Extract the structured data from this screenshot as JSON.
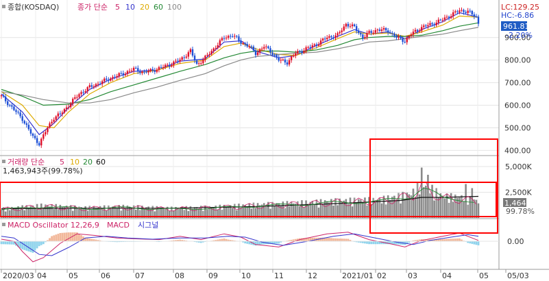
{
  "chart_data": [
    {
      "type": "candlestick",
      "panel": "price",
      "legend": {
        "symbol_label": "종합(KOSDAQ)",
        "ma_title": "종가 단순",
        "ma_periods": [
          "5",
          "10",
          "20",
          "60",
          "100"
        ],
        "ma_colors": [
          "#cc2266",
          "#3333cc",
          "#ddaa00",
          "#228833",
          "#888888"
        ]
      },
      "readout": {
        "lc": "LC:129.25",
        "hc": "HC:-6.86",
        "price": "961.81",
        "pct": "-2.20%"
      },
      "y_ticks": [
        "400.00",
        "500.00",
        "600.00",
        "700.00",
        "800.00",
        "900.00"
      ],
      "ylim": [
        380,
        1060
      ],
      "x_ticks": [
        "2020/03",
        "04",
        "05",
        "06",
        "07",
        "08",
        "09",
        "10",
        "11",
        "12",
        "2021/01",
        "02",
        "03",
        "04",
        "05",
        "05/03"
      ],
      "close_path": [
        [
          0,
          640
        ],
        [
          5,
          590
        ],
        [
          10,
          540
        ],
        [
          15,
          460
        ],
        [
          18,
          430
        ],
        [
          22,
          500
        ],
        [
          25,
          545
        ],
        [
          28,
          560
        ],
        [
          32,
          600
        ],
        [
          37,
          650
        ],
        [
          42,
          680
        ],
        [
          47,
          700
        ],
        [
          52,
          720
        ],
        [
          58,
          740
        ],
        [
          63,
          760
        ],
        [
          68,
          745
        ],
        [
          74,
          760
        ],
        [
          80,
          780
        ],
        [
          85,
          800
        ],
        [
          90,
          840
        ],
        [
          93,
          780
        ],
        [
          97,
          810
        ],
        [
          101,
          850
        ],
        [
          106,
          900
        ],
        [
          110,
          910
        ],
        [
          114,
          880
        ],
        [
          118,
          860
        ],
        [
          121,
          830
        ],
        [
          125,
          860
        ],
        [
          128,
          840
        ],
        [
          132,
          800
        ],
        [
          136,
          790
        ],
        [
          140,
          830
        ],
        [
          145,
          850
        ],
        [
          150,
          870
        ],
        [
          155,
          900
        ],
        [
          160,
          910
        ],
        [
          164,
          960
        ],
        [
          168,
          945
        ],
        [
          172,
          900
        ],
        [
          175,
          920
        ],
        [
          179,
          935
        ],
        [
          184,
          930
        ],
        [
          188,
          900
        ],
        [
          192,
          885
        ],
        [
          195,
          915
        ],
        [
          200,
          945
        ],
        [
          205,
          960
        ],
        [
          210,
          980
        ],
        [
          214,
          1000
        ],
        [
          218,
          1020
        ],
        [
          222,
          1015
        ],
        [
          226,
          990
        ],
        [
          227,
          962
        ]
      ],
      "ma_paths": [
        {
          "name": "10",
          "color": "#3333cc",
          "points": [
            [
              0,
              650
            ],
            [
              10,
              570
            ],
            [
              18,
              470
            ],
            [
              25,
              520
            ],
            [
              32,
              590
            ],
            [
              42,
              670
            ],
            [
              52,
              715
            ],
            [
              63,
              750
            ],
            [
              74,
              755
            ],
            [
              85,
              795
            ],
            [
              97,
              805
            ],
            [
              106,
              880
            ],
            [
              114,
              885
            ],
            [
              121,
              840
            ],
            [
              132,
              810
            ],
            [
              140,
              820
            ],
            [
              150,
              865
            ],
            [
              160,
              905
            ],
            [
              168,
              935
            ],
            [
              175,
              915
            ],
            [
              184,
              925
            ],
            [
              192,
              895
            ],
            [
              200,
              935
            ],
            [
              210,
              970
            ],
            [
              218,
              1010
            ],
            [
              227,
              990
            ]
          ]
        },
        {
          "name": "20",
          "color": "#ddaa00",
          "points": [
            [
              0,
              660
            ],
            [
              10,
              600
            ],
            [
              18,
              510
            ],
            [
              25,
              500
            ],
            [
              32,
              570
            ],
            [
              42,
              650
            ],
            [
              52,
              700
            ],
            [
              63,
              740
            ],
            [
              74,
              755
            ],
            [
              85,
              785
            ],
            [
              97,
              800
            ],
            [
              106,
              860
            ],
            [
              114,
              875
            ],
            [
              121,
              850
            ],
            [
              132,
              825
            ],
            [
              140,
              820
            ],
            [
              150,
              855
            ],
            [
              160,
              895
            ],
            [
              168,
              925
            ],
            [
              175,
              915
            ],
            [
              184,
              920
            ],
            [
              192,
              905
            ],
            [
              200,
              925
            ],
            [
              210,
              955
            ],
            [
              218,
              995
            ],
            [
              227,
              990
            ]
          ]
        },
        {
          "name": "60",
          "color": "#228833",
          "points": [
            [
              0,
              670
            ],
            [
              10,
              640
            ],
            [
              20,
              600
            ],
            [
              32,
              605
            ],
            [
              42,
              625
            ],
            [
              52,
              660
            ],
            [
              63,
              690
            ],
            [
              74,
              720
            ],
            [
              85,
              750
            ],
            [
              97,
              780
            ],
            [
              106,
              810
            ],
            [
              114,
              830
            ],
            [
              121,
              840
            ],
            [
              132,
              840
            ],
            [
              140,
              835
            ],
            [
              150,
              845
            ],
            [
              160,
              865
            ],
            [
              168,
              890
            ],
            [
              175,
              900
            ],
            [
              184,
              905
            ],
            [
              192,
              905
            ],
            [
              200,
              910
            ],
            [
              210,
              930
            ],
            [
              218,
              950
            ],
            [
              227,
              965
            ]
          ]
        },
        {
          "name": "100",
          "color": "#888888",
          "points": [
            [
              0,
              660
            ],
            [
              10,
              645
            ],
            [
              20,
              625
            ],
            [
              32,
              610
            ],
            [
              42,
              610
            ],
            [
              52,
              625
            ],
            [
              63,
              655
            ],
            [
              74,
              680
            ],
            [
              85,
              710
            ],
            [
              97,
              740
            ],
            [
              106,
              775
            ],
            [
              114,
              800
            ],
            [
              121,
              815
            ],
            [
              132,
              825
            ],
            [
              140,
              830
            ],
            [
              150,
              835
            ],
            [
              160,
              850
            ],
            [
              168,
              865
            ],
            [
              175,
              880
            ],
            [
              184,
              885
            ],
            [
              192,
              895
            ],
            [
              200,
              905
            ],
            [
              210,
              915
            ],
            [
              218,
              930
            ],
            [
              227,
              945
            ]
          ]
        }
      ]
    },
    {
      "type": "bar",
      "panel": "volume",
      "legend": {
        "title": "거래량 단순",
        "ma_periods": [
          "5",
          "10",
          "20",
          "60"
        ],
        "ma_colors": [
          "#cc2266",
          "#ddaa00",
          "#228833",
          "#111111"
        ],
        "current": "1,463,943주(99.78%)"
      },
      "readout": {
        "value": "1,464K",
        "pct": "99.78%"
      },
      "y_ticks": [
        "2,500K",
        "5,000K"
      ],
      "ylim": [
        0,
        6000
      ],
      "volume_profile": [
        [
          0,
          800
        ],
        [
          20,
          1100
        ],
        [
          40,
          900
        ],
        [
          60,
          1000
        ],
        [
          80,
          850
        ],
        [
          100,
          950
        ],
        [
          120,
          1150
        ],
        [
          140,
          1300
        ],
        [
          160,
          1500
        ],
        [
          180,
          1600
        ],
        [
          195,
          2100
        ],
        [
          200,
          3000
        ],
        [
          205,
          2500
        ],
        [
          210,
          1900
        ],
        [
          220,
          1800
        ],
        [
          227,
          1460
        ]
      ],
      "ma60_path": [
        [
          0,
          900
        ],
        [
          40,
          950
        ],
        [
          80,
          950
        ],
        [
          120,
          1100
        ],
        [
          160,
          1400
        ],
        [
          190,
          1700
        ],
        [
          200,
          2000
        ],
        [
          210,
          2000
        ],
        [
          227,
          2100
        ]
      ]
    },
    {
      "type": "macd",
      "panel": "macd",
      "legend": {
        "title": "MACD Oscillator 12,26,9",
        "macd_label": "MACD",
        "signal_label": "시그널"
      },
      "y_ticks": [
        "0.00"
      ],
      "macd_path": [
        [
          0,
          5
        ],
        [
          6,
          0
        ],
        [
          10,
          -25
        ],
        [
          15,
          -50
        ],
        [
          20,
          -40
        ],
        [
          28,
          -5
        ],
        [
          36,
          18
        ],
        [
          45,
          14
        ],
        [
          55,
          8
        ],
        [
          63,
          6
        ],
        [
          75,
          4
        ],
        [
          85,
          12
        ],
        [
          95,
          4
        ],
        [
          106,
          18
        ],
        [
          114,
          10
        ],
        [
          121,
          -8
        ],
        [
          132,
          -14
        ],
        [
          142,
          4
        ],
        [
          155,
          18
        ],
        [
          165,
          22
        ],
        [
          175,
          4
        ],
        [
          185,
          -6
        ],
        [
          192,
          -14
        ],
        [
          200,
          2
        ],
        [
          210,
          12
        ],
        [
          218,
          20
        ],
        [
          227,
          2
        ]
      ],
      "signal_path": [
        [
          0,
          12
        ],
        [
          6,
          8
        ],
        [
          12,
          -12
        ],
        [
          18,
          -32
        ],
        [
          24,
          -35
        ],
        [
          32,
          -15
        ],
        [
          40,
          8
        ],
        [
          50,
          12
        ],
        [
          60,
          8
        ],
        [
          72,
          5
        ],
        [
          85,
          8
        ],
        [
          97,
          8
        ],
        [
          108,
          12
        ],
        [
          116,
          10
        ],
        [
          124,
          -2
        ],
        [
          134,
          -10
        ],
        [
          146,
          0
        ],
        [
          158,
          12
        ],
        [
          168,
          18
        ],
        [
          178,
          8
        ],
        [
          188,
          -2
        ],
        [
          196,
          -8
        ],
        [
          204,
          2
        ],
        [
          214,
          10
        ],
        [
          222,
          16
        ],
        [
          227,
          12
        ]
      ]
    }
  ]
}
